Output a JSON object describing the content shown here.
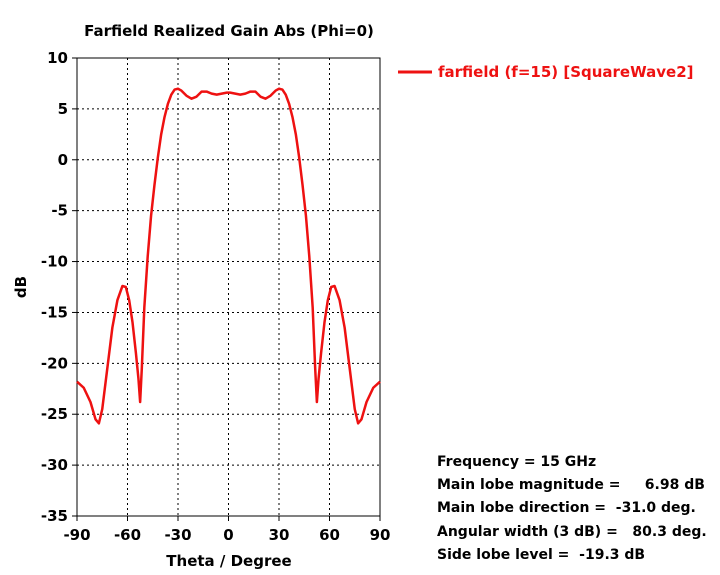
{
  "chart_data": {
    "type": "line",
    "title": "Farfield Realized Gain Abs (Phi=0)",
    "xlabel": "Theta / Degree",
    "ylabel": "dB",
    "xlim": [
      -90,
      90
    ],
    "ylim": [
      -35,
      10
    ],
    "xticks": [
      -90,
      -60,
      -30,
      0,
      30,
      60,
      90
    ],
    "yticks": [
      10,
      5,
      0,
      -5,
      -10,
      -15,
      -20,
      -25,
      -30,
      -35
    ],
    "grid": true,
    "legend_position": "right",
    "series": [
      {
        "name": "farfield (f=15) [SquareWave2]",
        "color": "#ee1111",
        "x": [
          -90,
          -86,
          -82,
          -79,
          -77,
          -75,
          -72,
          -69,
          -66,
          -63,
          -61,
          -59,
          -57,
          -55,
          -53.5,
          -52.5,
          -51.5,
          -50,
          -48,
          -46,
          -44,
          -42,
          -40,
          -38,
          -36,
          -34,
          -32,
          -30,
          -28,
          -25,
          -22,
          -19,
          -16,
          -13,
          -10,
          -7,
          -4,
          -1,
          0,
          1,
          4,
          7,
          10,
          13,
          16,
          19,
          22,
          25,
          28,
          30,
          32,
          34,
          36,
          38,
          40,
          42,
          44,
          46,
          48,
          50,
          51.5,
          52.5,
          53.5,
          55,
          57,
          59,
          61,
          63,
          66,
          69,
          72,
          75,
          77,
          79,
          82,
          86,
          90
        ],
        "y": [
          -21.8,
          -22.4,
          -23.8,
          -25.5,
          -25.9,
          -24.5,
          -20.5,
          -16.5,
          -13.8,
          -12.4,
          -12.5,
          -13.8,
          -16.0,
          -19.0,
          -21.5,
          -23.8,
          -20.5,
          -14.5,
          -9.5,
          -5.5,
          -2.5,
          0.2,
          2.5,
          4.2,
          5.5,
          6.4,
          6.9,
          6.98,
          6.8,
          6.3,
          6.0,
          6.2,
          6.7,
          6.7,
          6.5,
          6.4,
          6.5,
          6.6,
          6.6,
          6.6,
          6.5,
          6.4,
          6.5,
          6.7,
          6.7,
          6.2,
          6.0,
          6.3,
          6.8,
          6.98,
          6.9,
          6.4,
          5.5,
          4.2,
          2.5,
          0.2,
          -2.5,
          -5.5,
          -9.5,
          -14.5,
          -20.5,
          -23.8,
          -21.5,
          -19.0,
          -16.0,
          -13.8,
          -12.5,
          -12.4,
          -13.8,
          -16.5,
          -20.5,
          -24.5,
          -25.9,
          -25.5,
          -23.8,
          -22.4,
          -21.8
        ]
      }
    ],
    "annotations": [
      "Frequency = 15 GHz",
      "Main lobe magnitude =     6.98 dB",
      "Main lobe direction =  -31.0 deg.",
      "Angular width (3 dB) =   80.3 deg.",
      "Side lobe level =  -19.3 dB"
    ]
  }
}
